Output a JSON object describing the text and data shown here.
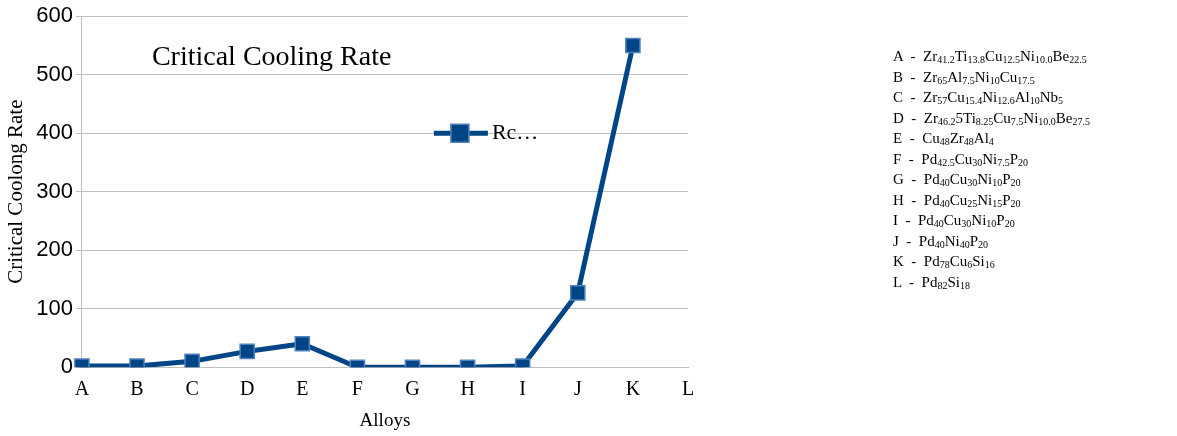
{
  "chart_data": {
    "type": "line",
    "title": "Critical Cooling Rate",
    "xlabel": "Alloys",
    "ylabel": "Critical Coolong Rate",
    "categories": [
      "A",
      "B",
      "C",
      "D",
      "E",
      "F",
      "G",
      "H",
      "I",
      "J",
      "K",
      "L"
    ],
    "series": [
      {
        "name": "Rc…",
        "color": "#004586",
        "values": [
          2,
          2,
          10,
          27,
          40,
          0,
          0,
          0,
          2,
          127,
          550,
          null
        ]
      }
    ],
    "ylim": [
      0,
      600
    ],
    "yticks": [
      0,
      100,
      200,
      300,
      400,
      500,
      600
    ],
    "grid": "y",
    "legend": "top right",
    "marker": "square",
    "line_style": "solid",
    "annotations": [
      "A  -  Zr$_{41.2}$Ti$_{13.8}$Cu$_{12.5}$Ni$_{10.0}$Be$_{22.5}$",
      "B  -  Zr$_{65}$Al$_{7.5}$Ni$_{10}$Cu$_{17.5}$",
      "C  -  Zr$_{57}$Cu$_{15.4}$Ni$_{12.6}$Al$_{10}$Nb$_{5}$",
      "D  -  Zr$_{46.2}$5Ti$_{8.25}$Cu$_{7.5}$Ni$_{10.0}$Be$_{27.5}$",
      "E  -  Cu$_{48}$Zr$_{48}$Al$_{4}$",
      "F  -  Pd$_{42.5}$Cu$_{30}$Ni$_{7.5}$P$_{20}$",
      "G  -  Pd$_{40}$Cu$_{30}$Ni$_{10}$P$_{20}$",
      "H  -  Pd$_{40}$Cu$_{25}$Ni$_{15}$P$_{20}$",
      "I  -  Pd$_{40}$Cu$_{30}$Ni$_{10}$P$_{20}$",
      "J  -  Pd$_{40}$Ni$_{40}$P$_{20}$",
      "K  -  Pd$_{78}$Cu$_{6}$Si$_{16}$",
      "L  -  Pd$_{82}$Si$_{18}$"
    ]
  }
}
